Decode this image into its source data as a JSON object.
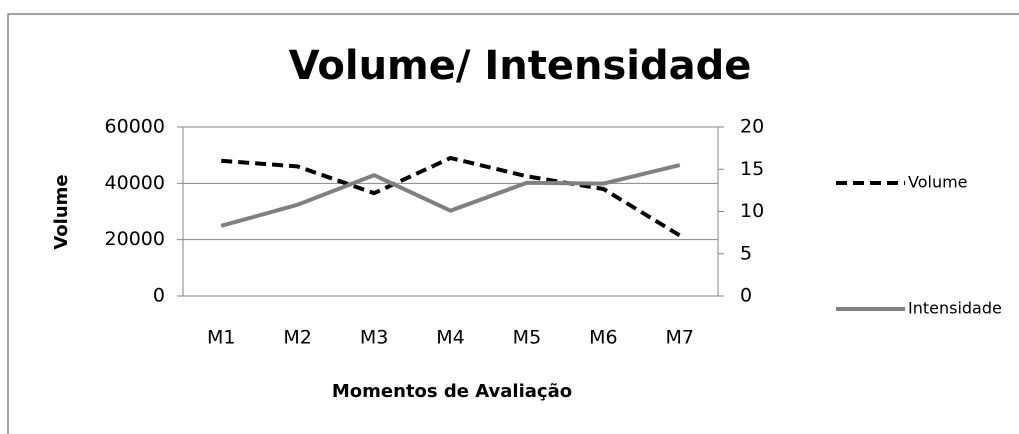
{
  "chart_data": {
    "type": "line",
    "title": "Volume/ Intensidade",
    "x_label": "Momentos de Avaliação",
    "y_label": "Volume",
    "categories": [
      "M1",
      "M2",
      "M3",
      "M4",
      "M5",
      "M6",
      "M7"
    ],
    "series": [
      {
        "name": "Volume",
        "color": "#000000",
        "line_style": "dashed",
        "values": [
          48000,
          46000,
          36500,
          49000,
          42500,
          38000,
          21500
        ]
      },
      {
        "name": "Intensidade",
        "color": "#808080",
        "line_style": "solid",
        "axis": "y2",
        "values": [
          8.3,
          10.8,
          14.3,
          10.1,
          13.4,
          13.3,
          15.5
        ]
      }
    ],
    "ylim": [
      0,
      60000
    ],
    "yticks": [
      0,
      20000,
      40000,
      60000
    ],
    "y2lim": [
      0,
      20
    ],
    "y2ticks": [
      0,
      5,
      10,
      15,
      20
    ],
    "grid": true,
    "legend": "right"
  }
}
